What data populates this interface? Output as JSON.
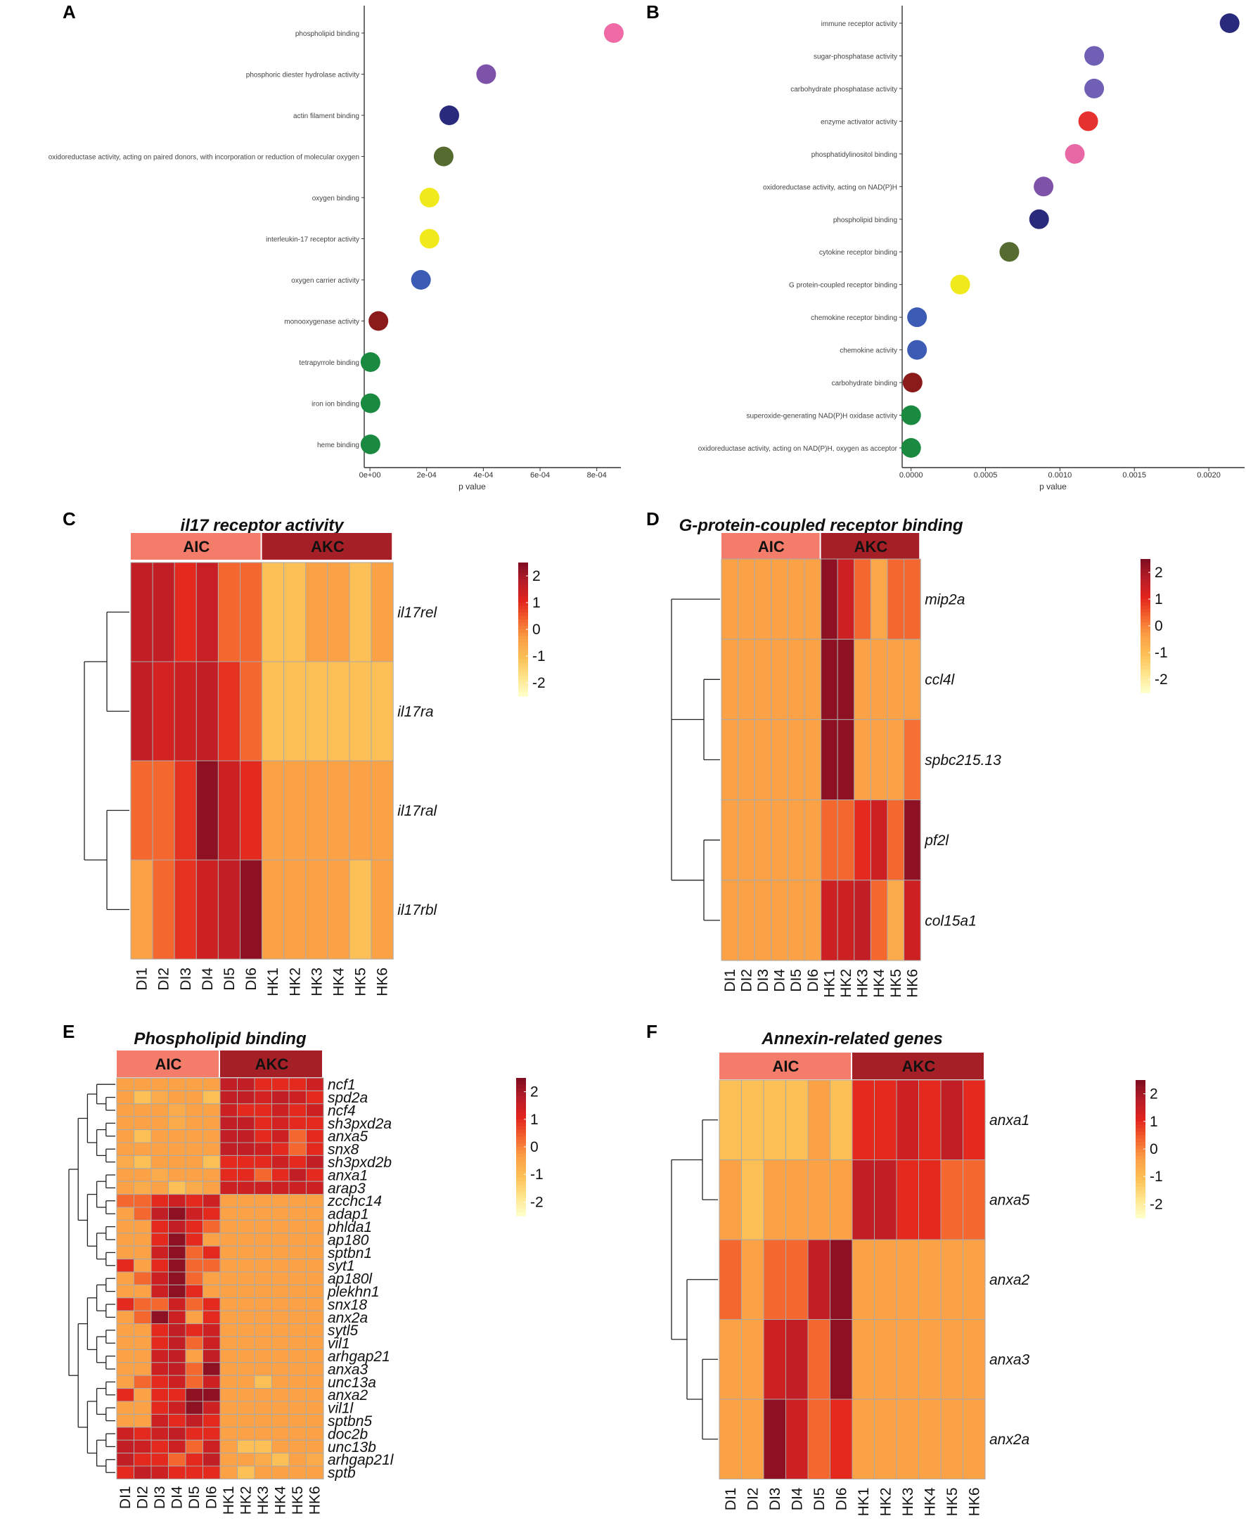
{
  "colors": {
    "aic": "#f47c6a",
    "akc": "#a52026",
    "grid": "#aaaaaa",
    "heat_scale": [
      "#ffffcc",
      "#ffe48a",
      "#fdbf55",
      "#fba046",
      "#f3632d",
      "#e2231d",
      "#b51d28",
      "#7d0d20"
    ]
  },
  "panels": {
    "a": {
      "letter": "A"
    },
    "b": {
      "letter": "B"
    },
    "c": {
      "letter": "C"
    },
    "d": {
      "letter": "D"
    },
    "e": {
      "letter": "E"
    },
    "f": {
      "letter": "F"
    }
  },
  "chart_data": [
    {
      "id": "a",
      "type": "scatter",
      "title": "",
      "xlabel": "p value",
      "xlim": [
        -2e-05,
        0.00089
      ],
      "x_ticks": [
        0,
        0.0002,
        0.0004,
        0.0006,
        0.0008
      ],
      "x_tick_labels": [
        "0e+00",
        "2e-04",
        "4e-04",
        "6e-04",
        "8e-04"
      ],
      "points": [
        {
          "term": "phospholipid binding",
          "p": 0.00086,
          "color": "#f06aa6"
        },
        {
          "term": "phosphoric diester hydrolase activity",
          "p": 0.00041,
          "color": "#7d52a8"
        },
        {
          "term": "actin filament binding",
          "p": 0.00028,
          "color": "#2a2a7c"
        },
        {
          "term": "oxidoreductase activity, acting on paired donors, with incorporation or reduction of molecular oxygen",
          "p": 0.00026,
          "color": "#556b2f"
        },
        {
          "term": "oxygen binding",
          "p": 0.00021,
          "color": "#f0ea1c"
        },
        {
          "term": "interleukin-17 receptor activity",
          "p": 0.00021,
          "color": "#f0ea1c"
        },
        {
          "term": "oxygen carrier activity",
          "p": 0.00018,
          "color": "#3c5bb5"
        },
        {
          "term": "monooxygenase activity",
          "p": 3e-05,
          "color": "#8b1a1a"
        },
        {
          "term": "tetrapyrrole binding",
          "p": 2e-06,
          "color": "#1a8a40"
        },
        {
          "term": "iron ion binding",
          "p": 2e-06,
          "color": "#1a8a40"
        },
        {
          "term": "heme binding",
          "p": 2e-06,
          "color": "#1a8a40"
        }
      ]
    },
    {
      "id": "b",
      "type": "scatter",
      "title": "",
      "xlabel": "p value",
      "xlim": [
        -6e-05,
        0.00225
      ],
      "x_ticks": [
        0,
        0.0005,
        0.001,
        0.0015,
        0.002
      ],
      "x_tick_labels": [
        "0.0000",
        "0.0005",
        "0.0010",
        "0.0015",
        "0.0020"
      ],
      "points": [
        {
          "term": "immune receptor activity",
          "p": 0.00214,
          "color": "#2a2a7c"
        },
        {
          "term": "sugar-phosphatase activity",
          "p": 0.00123,
          "color": "#6f60b5"
        },
        {
          "term": "carbohydrate phosphatase activity",
          "p": 0.00123,
          "color": "#6f60b5"
        },
        {
          "term": "enzyme activator activity",
          "p": 0.00119,
          "color": "#e6322f"
        },
        {
          "term": "phosphatidylinositol binding",
          "p": 0.0011,
          "color": "#e867a5"
        },
        {
          "term": "oxidoreductase activity, acting on NAD(P)H",
          "p": 0.00089,
          "color": "#7d52a8"
        },
        {
          "term": "phospholipid binding",
          "p": 0.00086,
          "color": "#2a2a7c"
        },
        {
          "term": "cytokine receptor binding",
          "p": 0.00066,
          "color": "#556b2f"
        },
        {
          "term": "G protein-coupled receptor binding",
          "p": 0.00033,
          "color": "#f0ea1c"
        },
        {
          "term": "chemokine receptor binding",
          "p": 4e-05,
          "color": "#3c5bb5"
        },
        {
          "term": "chemokine activity",
          "p": 4e-05,
          "color": "#3c5bb5"
        },
        {
          "term": "carbohydrate binding",
          "p": 1e-05,
          "color": "#8b1a1a"
        },
        {
          "term": "superoxide-generating NAD(P)H oxidase activity",
          "p": 0.0,
          "color": "#1a8a40"
        },
        {
          "term": "oxidoreductase activity, acting on NAD(P)H, oxygen as acceptor",
          "p": 0.0,
          "color": "#1a8a40"
        }
      ]
    },
    {
      "id": "c",
      "type": "heatmap",
      "title": "il17 receptor activity",
      "groups": [
        {
          "label": "AIC",
          "n": 6
        },
        {
          "label": "AKC",
          "n": 6
        }
      ],
      "columns": [
        "DI1",
        "DI2",
        "DI3",
        "DI4",
        "DI5",
        "DI6",
        "HK1",
        "HK2",
        "HK3",
        "HK4",
        "HK5",
        "HK6"
      ],
      "rows": [
        "il17rel",
        "il17ra",
        "il17ral",
        "il17rbl"
      ],
      "values": [
        [
          1.6,
          1.6,
          1.0,
          1.5,
          0.3,
          0.3,
          -1.1,
          -1.1,
          -0.4,
          -0.4,
          -1.1,
          -0.4
        ],
        [
          1.6,
          1.3,
          1.4,
          1.6,
          0.9,
          0.3,
          -1.1,
          -1.1,
          -1.1,
          -1.1,
          -1.1,
          -1.1
        ],
        [
          0.3,
          0.3,
          0.9,
          2.3,
          1.4,
          1.0,
          -0.4,
          -0.4,
          -0.4,
          -0.4,
          -0.4,
          -0.4
        ],
        [
          -0.4,
          0.3,
          0.9,
          1.4,
          1.6,
          2.3,
          -0.4,
          -0.4,
          -0.4,
          -0.4,
          -1.1,
          -0.4
        ]
      ],
      "legend": {
        "ticks": [
          2,
          1,
          0,
          -1,
          -2
        ],
        "labels": [
          "2",
          "1",
          "0",
          "-1",
          "-2"
        ]
      }
    },
    {
      "id": "d",
      "type": "heatmap",
      "title": "G-protein-coupled receptor binding",
      "groups": [
        {
          "label": "AIC",
          "n": 6
        },
        {
          "label": "AKC",
          "n": 6
        }
      ],
      "columns": [
        "DI1",
        "DI2",
        "DI3",
        "DI4",
        "DI5",
        "DI6",
        "HK1",
        "HK2",
        "HK3",
        "HK4",
        "HK5",
        "HK6"
      ],
      "rows": [
        "mip2a",
        "ccl4l",
        "spbc215.13",
        "pf2l",
        "col15a1"
      ],
      "values": [
        [
          -0.4,
          -0.4,
          -0.4,
          -0.4,
          -0.4,
          -0.4,
          2.3,
          1.4,
          0.3,
          -0.5,
          0.3,
          0.3
        ],
        [
          -0.4,
          -0.4,
          -0.4,
          -0.4,
          -0.4,
          -0.4,
          2.3,
          2.3,
          -0.4,
          -0.4,
          -0.4,
          -0.4
        ],
        [
          -0.4,
          -0.4,
          -0.4,
          -0.4,
          -0.4,
          -0.4,
          2.3,
          2.3,
          -0.4,
          -0.4,
          -0.4,
          0.2
        ],
        [
          -0.4,
          -0.4,
          -0.4,
          -0.4,
          -0.4,
          -0.4,
          0.3,
          0.3,
          1.0,
          1.4,
          0.3,
          2.3
        ],
        [
          -0.4,
          -0.4,
          -0.4,
          -0.4,
          -0.4,
          -0.4,
          1.4,
          1.4,
          1.6,
          0.3,
          -0.6,
          1.4
        ]
      ],
      "legend": {
        "ticks": [
          2,
          1,
          0,
          -1,
          -2
        ],
        "labels": [
          "2",
          "1",
          "0",
          "-1",
          "-2"
        ]
      }
    },
    {
      "id": "e",
      "type": "heatmap",
      "title": "Phospholipid binding",
      "groups": [
        {
          "label": "AIC",
          "n": 6
        },
        {
          "label": "AKC",
          "n": 6
        }
      ],
      "columns": [
        "DI1",
        "DI2",
        "DI3",
        "DI4",
        "DI5",
        "DI6",
        "HK1",
        "HK2",
        "HK3",
        "HK4",
        "HK5",
        "HK6"
      ],
      "rows": [
        "ncf1",
        "spd2a",
        "ncf4",
        "sh3pxd2a",
        "anxa5",
        "snx8",
        "sh3pxd2b",
        "anxa1",
        "arap3",
        "zcchc14",
        "adap1",
        "phlda1",
        "ap180",
        "sptbn1",
        "syt1",
        "ap180l",
        "plekhn1",
        "snx18",
        "anx2a",
        "sytl5",
        "vil1",
        "arhgap21",
        "anxa3",
        "unc13a",
        "anxa2",
        "vil1l",
        "sptbn5",
        "doc2b",
        "unc13b",
        "arhgap21l",
        "sptb"
      ],
      "values": [
        [
          -0.4,
          -0.4,
          -0.4,
          -0.4,
          -0.4,
          -0.4,
          1.6,
          1.6,
          1.0,
          1.0,
          1.0,
          1.4
        ],
        [
          -0.4,
          -1.1,
          -0.6,
          -0.4,
          -0.4,
          -1.1,
          1.6,
          1.6,
          1.3,
          1.6,
          1.4,
          1.0
        ],
        [
          -0.4,
          -0.4,
          -0.4,
          -0.6,
          -0.4,
          -0.4,
          1.4,
          1.0,
          1.0,
          1.4,
          1.0,
          1.4
        ],
        [
          -0.4,
          -0.4,
          -0.4,
          -0.6,
          -0.4,
          -0.4,
          1.6,
          1.6,
          1.0,
          1.3,
          1.0,
          1.0
        ],
        [
          -0.4,
          -1.1,
          -0.4,
          -0.4,
          -0.4,
          -0.4,
          1.6,
          1.6,
          1.0,
          1.4,
          0.3,
          1.0
        ],
        [
          -0.4,
          -0.4,
          -0.4,
          -0.4,
          -0.4,
          -0.4,
          1.6,
          1.6,
          1.4,
          1.0,
          0.3,
          1.0
        ],
        [
          -0.6,
          -1.1,
          -0.4,
          -0.4,
          -0.4,
          -1.1,
          1.0,
          1.0,
          1.0,
          1.4,
          1.0,
          1.6
        ],
        [
          -0.4,
          -0.4,
          -0.6,
          -0.4,
          -0.4,
          -0.4,
          1.0,
          1.0,
          0.3,
          1.0,
          1.6,
          1.0
        ],
        [
          -0.4,
          -0.6,
          -0.4,
          -1.1,
          -0.6,
          -0.4,
          1.4,
          1.4,
          1.4,
          1.4,
          1.4,
          1.4
        ],
        [
          0.3,
          0.3,
          1.0,
          1.4,
          1.0,
          1.4,
          -0.4,
          -0.4,
          -0.4,
          -0.4,
          -0.4,
          -0.4
        ],
        [
          -0.4,
          0.3,
          1.6,
          2.3,
          1.4,
          1.0,
          -0.4,
          -0.4,
          -0.4,
          -0.4,
          -0.4,
          -0.4
        ],
        [
          -0.4,
          -0.4,
          1.0,
          1.6,
          1.0,
          0.3,
          -0.4,
          -0.4,
          -0.4,
          -0.4,
          -0.4,
          -0.4
        ],
        [
          -0.4,
          -0.4,
          1.0,
          2.3,
          1.0,
          -0.4,
          -0.4,
          -0.4,
          -0.4,
          -0.4,
          -0.4,
          -0.4
        ],
        [
          -0.4,
          -0.4,
          1.4,
          2.3,
          0.3,
          1.0,
          -0.4,
          -0.4,
          -0.4,
          -0.4,
          -0.4,
          -0.4
        ],
        [
          1.0,
          -0.4,
          1.0,
          2.3,
          0.3,
          0.3,
          -0.4,
          -0.4,
          -0.4,
          -0.4,
          -0.4,
          -0.4
        ],
        [
          -0.4,
          0.3,
          1.4,
          2.3,
          0.3,
          -0.4,
          -0.4,
          -0.4,
          -0.4,
          -0.4,
          -0.4,
          -0.4
        ],
        [
          -0.4,
          -0.4,
          1.4,
          2.3,
          1.0,
          -0.4,
          -0.4,
          -0.4,
          -0.4,
          -0.4,
          -0.4,
          -0.4
        ],
        [
          1.0,
          0.3,
          0.3,
          1.4,
          0.3,
          1.0,
          -0.4,
          -0.4,
          -0.4,
          -0.4,
          -0.4,
          -0.4
        ],
        [
          -0.4,
          0.3,
          2.3,
          1.4,
          -0.4,
          1.0,
          -0.4,
          -0.4,
          -0.4,
          -0.4,
          -0.4,
          -0.4
        ],
        [
          -0.4,
          -0.4,
          1.0,
          1.6,
          1.0,
          1.4,
          -0.4,
          -0.4,
          -0.4,
          -0.4,
          -0.4,
          -0.4
        ],
        [
          -0.4,
          -0.4,
          1.0,
          1.6,
          0.3,
          1.4,
          -0.4,
          -0.4,
          -0.4,
          -0.4,
          -0.4,
          -0.4
        ],
        [
          -0.4,
          -0.4,
          1.4,
          1.6,
          -0.4,
          1.6,
          -0.4,
          -0.4,
          -0.4,
          -0.4,
          -0.4,
          -0.4
        ],
        [
          -0.4,
          -0.4,
          1.4,
          1.6,
          0.3,
          2.3,
          -0.4,
          -0.4,
          -0.4,
          -0.4,
          -0.4,
          -0.4
        ],
        [
          -0.4,
          0.3,
          1.0,
          1.4,
          0.3,
          1.4,
          -0.4,
          -0.4,
          -1.1,
          -0.4,
          -0.4,
          -0.4
        ],
        [
          1.0,
          -0.4,
          1.0,
          1.0,
          2.3,
          2.3,
          -0.4,
          -0.4,
          -0.4,
          -0.4,
          -0.4,
          -0.4
        ],
        [
          -0.4,
          -0.4,
          1.0,
          1.4,
          2.3,
          1.4,
          -0.4,
          -0.4,
          -0.4,
          -0.4,
          -0.4,
          -0.4
        ],
        [
          -0.4,
          -0.4,
          1.4,
          1.0,
          1.6,
          1.0,
          -0.4,
          -0.4,
          -0.4,
          -0.4,
          -0.4,
          -0.4
        ],
        [
          1.4,
          1.0,
          1.4,
          1.6,
          1.0,
          1.0,
          -0.4,
          -0.4,
          -0.4,
          -0.4,
          -0.4,
          -0.4
        ],
        [
          1.6,
          1.4,
          1.0,
          1.4,
          0.3,
          1.4,
          -0.4,
          -1.1,
          -1.1,
          -0.4,
          -0.4,
          -0.4
        ],
        [
          1.6,
          1.0,
          1.0,
          0.3,
          1.0,
          1.6,
          -0.4,
          -0.4,
          -0.6,
          -1.1,
          -0.4,
          -0.6
        ],
        [
          1.0,
          1.6,
          1.4,
          1.0,
          1.0,
          1.0,
          -0.4,
          -1.1,
          -0.4,
          -0.4,
          -0.4,
          -0.4
        ]
      ],
      "legend": {
        "ticks": [
          2,
          1,
          0,
          -1,
          -2
        ],
        "labels": [
          "2",
          "1",
          "0",
          "-1",
          "-2"
        ]
      }
    },
    {
      "id": "f",
      "type": "heatmap",
      "title": "Annexin-related genes",
      "groups": [
        {
          "label": "AIC",
          "n": 6
        },
        {
          "label": "AKC",
          "n": 6
        }
      ],
      "columns": [
        "DI1",
        "DI2",
        "DI3",
        "DI4",
        "DI5",
        "DI6",
        "HK1",
        "HK2",
        "HK3",
        "HK4",
        "HK5",
        "HK6"
      ],
      "rows": [
        "anxa1",
        "anxa5",
        "anxa2",
        "anxa3",
        "anx2a"
      ],
      "values": [
        [
          -1.1,
          -1.1,
          -1.1,
          -1.1,
          -0.4,
          -1.1,
          1.0,
          1.0,
          1.4,
          1.0,
          1.6,
          1.0
        ],
        [
          -0.4,
          -1.1,
          -0.4,
          -0.4,
          -0.4,
          -0.4,
          1.6,
          1.6,
          1.0,
          1.0,
          0.3,
          0.3
        ],
        [
          0.3,
          -0.4,
          0.3,
          0.3,
          1.6,
          2.3,
          -0.4,
          -0.4,
          -0.4,
          -0.4,
          -0.4,
          -0.4
        ],
        [
          -0.4,
          -0.4,
          1.4,
          1.6,
          0.3,
          2.3,
          -0.4,
          -0.4,
          -0.4,
          -0.4,
          -0.4,
          -0.4
        ],
        [
          -0.4,
          -0.4,
          2.3,
          1.4,
          0.3,
          1.0,
          -0.4,
          -0.4,
          -0.4,
          -0.4,
          -0.4,
          -0.4
        ]
      ],
      "legend": {
        "ticks": [
          2,
          1,
          0,
          -1,
          -2
        ],
        "labels": [
          "2",
          "1",
          "0",
          "-1",
          "-2"
        ]
      }
    }
  ]
}
